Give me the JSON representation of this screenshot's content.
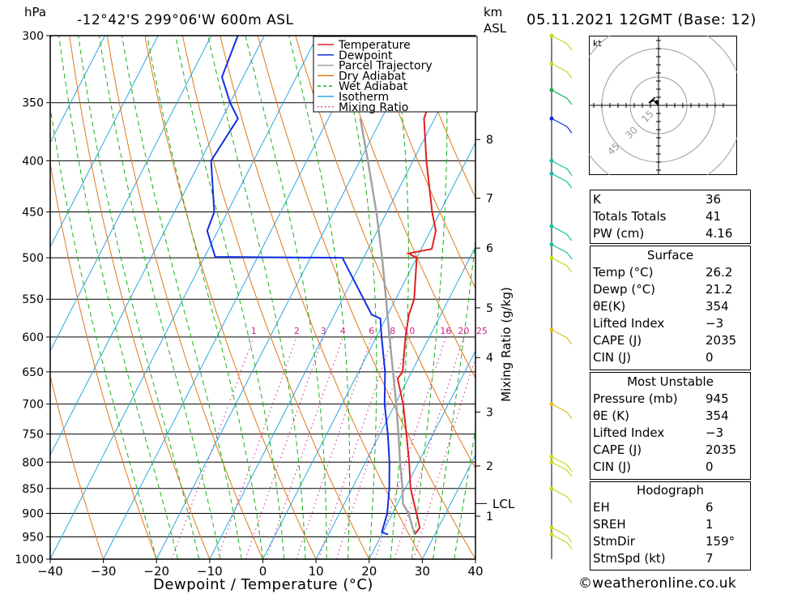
{
  "header": {
    "pressure_unit": "hPa",
    "location": "-12°42'S  299°06'W  600m  ASL",
    "km_label": "km",
    "asl_label": "ASL",
    "datetime": "05.11.2021  12GMT  (Base: 12)"
  },
  "chart_data": {
    "type": "line",
    "xlabel": "Dewpoint / Temperature (°C)",
    "ylabel": "hPa",
    "mixing_ratio_label": "Mixing Ratio (g/kg)",
    "xlim": [
      -40,
      40
    ],
    "ylim": [
      1000,
      300
    ],
    "x_ticks": [
      "−40",
      "−30",
      "−20",
      "−10",
      "0",
      "10",
      "20",
      "30",
      "40"
    ],
    "pressure_levels": [
      300,
      350,
      400,
      450,
      500,
      550,
      600,
      650,
      700,
      750,
      800,
      850,
      900,
      950,
      1000
    ],
    "km_ticks": [
      {
        "label": "8",
        "p": 381
      },
      {
        "label": "7",
        "p": 436
      },
      {
        "label": "6",
        "p": 489
      },
      {
        "label": "5",
        "p": 561
      },
      {
        "label": "4",
        "p": 629
      },
      {
        "label": "3",
        "p": 713
      },
      {
        "label": "2",
        "p": 807
      },
      {
        "label": "1",
        "p": 906
      }
    ],
    "lcl": {
      "label": "LCL",
      "p": 880
    },
    "mixing_ratio_ticks": [
      "1",
      "2",
      "3",
      "4",
      "6",
      "8",
      "10",
      "16",
      "20",
      "25"
    ],
    "legend": [
      "Temperature",
      "Dewpoint",
      "Parcel Trajectory",
      "Dry Adiabat",
      "Wet Adiabat",
      "Isotherm",
      "Mixing Ratio"
    ],
    "legend_position": "top-right",
    "series": [
      {
        "name": "Temperature",
        "color": "#e02020",
        "points": [
          [
            945,
            26.2
          ],
          [
            930,
            26.5
          ],
          [
            900,
            24.5
          ],
          [
            850,
            21.0
          ],
          [
            800,
            18.2
          ],
          [
            750,
            15.0
          ],
          [
            700,
            11.5
          ],
          [
            660,
            8.0
          ],
          [
            650,
            8.3
          ],
          [
            600,
            5.5
          ],
          [
            570,
            4.0
          ],
          [
            550,
            3.5
          ],
          [
            500,
            0.0
          ],
          [
            495,
            -2.0
          ],
          [
            490,
            2.0
          ],
          [
            470,
            1.0
          ],
          [
            450,
            -1.5
          ],
          [
            400,
            -7.5
          ],
          [
            363,
            -12.0
          ],
          [
            350,
            -12.5
          ],
          [
            300,
            -14.0
          ]
        ]
      },
      {
        "name": "Dewpoint",
        "color": "#1030e0",
        "points": [
          [
            945,
            21.2
          ],
          [
            940,
            19.8
          ],
          [
            900,
            19.0
          ],
          [
            850,
            17.0
          ],
          [
            800,
            14.5
          ],
          [
            750,
            11.5
          ],
          [
            700,
            8.0
          ],
          [
            650,
            5.0
          ],
          [
            600,
            1.0
          ],
          [
            575,
            -1.0
          ],
          [
            570,
            -3.0
          ],
          [
            550,
            -6.0
          ],
          [
            500,
            -14.0
          ],
          [
            499,
            -38.0
          ],
          [
            470,
            -42.0
          ],
          [
            450,
            -42.5
          ],
          [
            400,
            -48.0
          ],
          [
            363,
            -47.0
          ],
          [
            350,
            -50.0
          ],
          [
            330,
            -54.0
          ],
          [
            300,
            -55.0
          ]
        ]
      },
      {
        "name": "Parcel Trajectory",
        "color": "#a0a0a0",
        "points": [
          [
            945,
            26.2
          ],
          [
            900,
            23.0
          ],
          [
            880,
            21.0
          ],
          [
            850,
            19.5
          ],
          [
            800,
            16.5
          ],
          [
            750,
            13.5
          ],
          [
            700,
            10.2
          ],
          [
            650,
            6.5
          ],
          [
            600,
            2.5
          ],
          [
            550,
            -1.8
          ],
          [
            500,
            -6.5
          ],
          [
            450,
            -12.0
          ],
          [
            400,
            -18.5
          ],
          [
            363,
            -24.0
          ]
        ]
      }
    ]
  },
  "indices": {
    "top": [
      {
        "label": "K",
        "value": "36"
      },
      {
        "label": "Totals Totals",
        "value": "41"
      },
      {
        "label": "PW (cm)",
        "value": "4.16"
      }
    ],
    "surface_title": "Surface",
    "surface": [
      {
        "label": "Temp (°C)",
        "value": "26.2"
      },
      {
        "label": "Dewp (°C)",
        "value": "21.2"
      },
      {
        "label": "θE(K)",
        "value": "354"
      },
      {
        "label": "Lifted Index",
        "value": "−3"
      },
      {
        "label": "CAPE (J)",
        "value": "2035"
      },
      {
        "label": "CIN (J)",
        "value": "0"
      }
    ],
    "mu_title": "Most Unstable",
    "mu": [
      {
        "label": "Pressure (mb)",
        "value": "945"
      },
      {
        "label": "θE (K)",
        "value": "354"
      },
      {
        "label": "Lifted Index",
        "value": "−3"
      },
      {
        "label": "CAPE (J)",
        "value": "2035"
      },
      {
        "label": "CIN (J)",
        "value": "0"
      }
    ],
    "hodo_title": "Hodograph",
    "hodo": [
      {
        "label": "EH",
        "value": "6"
      },
      {
        "label": "SREH",
        "value": "1"
      },
      {
        "label": "StmDir",
        "value": "159°"
      },
      {
        "label": "StmSpd (kt)",
        "value": "7"
      }
    ]
  },
  "hodograph": {
    "unit_label": "kt",
    "ring_labels": [
      "15",
      "30",
      "45"
    ]
  },
  "credit": "©weatheronline.co.uk"
}
